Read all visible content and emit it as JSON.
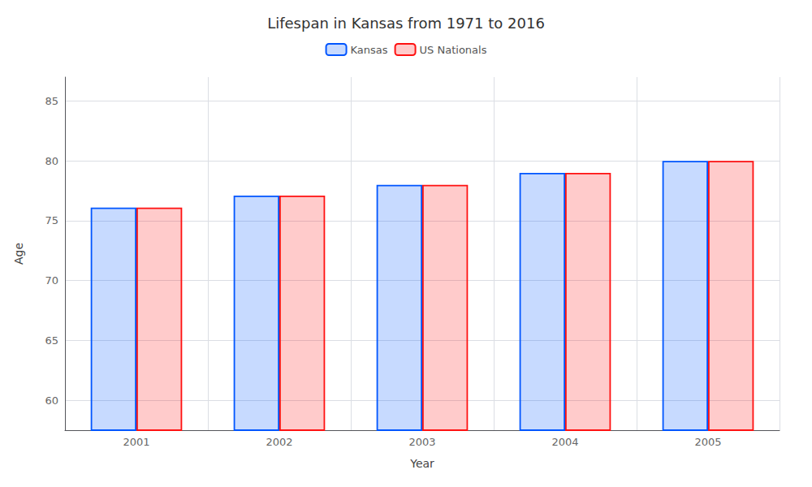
{
  "chart_data": {
    "type": "bar",
    "title": "Lifespan in Kansas from 1971 to 2016",
    "xlabel": "Year",
    "ylabel": "Age",
    "categories": [
      "2001",
      "2002",
      "2003",
      "2004",
      "2005"
    ],
    "series": [
      {
        "name": "Kansas",
        "color": "#0055ff",
        "values": [
          76.1,
          77.1,
          78.0,
          79.0,
          80.0
        ]
      },
      {
        "name": "US Nationals",
        "color": "#ff1111",
        "values": [
          76.1,
          77.1,
          78.0,
          79.0,
          80.0
        ]
      }
    ],
    "ylim": [
      57.5,
      87
    ],
    "yticks": [
      60,
      65,
      70,
      75,
      80,
      85
    ],
    "grid": true,
    "legend": "top"
  }
}
